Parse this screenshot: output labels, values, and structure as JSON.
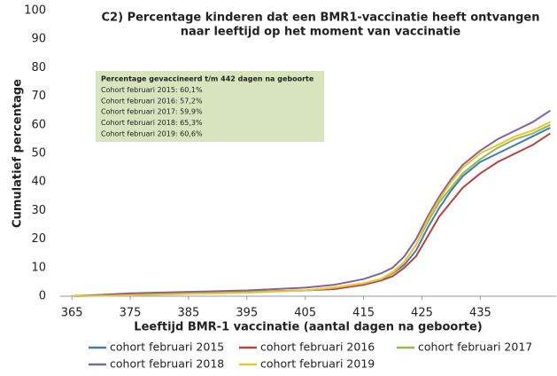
{
  "chart_data": {
    "type": "line",
    "title": [
      "C2) Percentage kinderen dat een BMR1-vaccinatie heeft ontvangen",
      "naar leeftijd op het moment van vaccinatie"
    ],
    "x_label": "Leeftijd BMR-1 vaccinatie (aantal dagen na geboorte)",
    "y_label": "Cumulatief percentage",
    "annotation": [
      "Percentage gevaccineerd t/m 442 dagen na geboorte",
      "Cohort februari 2015: 60,1%",
      "Cohort februari 2016: 57,2%",
      "Cohort februari 2017: 59,9%",
      "Cohort februari 2018: 65,3%",
      "Cohort februari 2019: 60,6%"
    ],
    "x": [
      365,
      375,
      385,
      395,
      405,
      410,
      415,
      418,
      420,
      422,
      424,
      426,
      428,
      430,
      432,
      435,
      438,
      441,
      444,
      447
    ],
    "series": [
      {
        "name": "cohort februari 2015",
        "color": "#3f7fb0",
        "values": [
          0,
          0.5,
          1,
          1.5,
          2,
          3,
          4,
          6,
          8,
          11,
          16,
          24,
          31,
          37,
          42,
          47,
          50,
          53,
          56,
          59
        ]
      },
      {
        "name": "cohort februari 2016",
        "color": "#b5443f",
        "values": [
          0,
          0.5,
          1,
          1.5,
          2,
          2.5,
          4,
          5.5,
          7,
          10,
          14,
          21,
          28,
          33,
          38,
          43,
          47,
          50,
          53,
          57
        ]
      },
      {
        "name": "cohort februari 2017",
        "color": "#92bb4f",
        "values": [
          0,
          0.5,
          1,
          1.5,
          2,
          3,
          4.5,
          6,
          8,
          12,
          18,
          26,
          33,
          38,
          43,
          48,
          52,
          55,
          57,
          60
        ]
      },
      {
        "name": "cohort februari 2018",
        "color": "#8064a2",
        "values": [
          0,
          1,
          1.5,
          2,
          3,
          4,
          6,
          8,
          10,
          14,
          20,
          28,
          35,
          41,
          46,
          51,
          55,
          58,
          61,
          65
        ]
      },
      {
        "name": "cohort februari 2019",
        "color": "#f2c12e",
        "values": [
          0,
          0.3,
          0.8,
          1.2,
          2,
          3,
          4.5,
          6,
          8.5,
          12,
          18,
          27,
          34,
          40,
          45,
          50,
          53,
          56,
          58,
          61
        ]
      }
    ],
    "xlim": [
      363,
      448
    ],
    "ylim": [
      0,
      100
    ],
    "xticks": [
      365,
      375,
      385,
      395,
      405,
      415,
      425,
      435
    ],
    "yticks": [
      0,
      10,
      20,
      30,
      40,
      50,
      60,
      70,
      80,
      90,
      100
    ],
    "grid": false
  }
}
